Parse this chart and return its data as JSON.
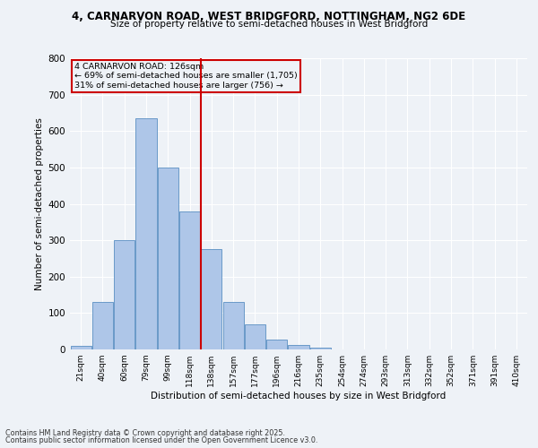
{
  "title1": "4, CARNARVON ROAD, WEST BRIDGFORD, NOTTINGHAM, NG2 6DE",
  "title2": "Size of property relative to semi-detached houses in West Bridgford",
  "xlabel": "Distribution of semi-detached houses by size in West Bridgford",
  "ylabel": "Number of semi-detached properties",
  "categories": [
    "21sqm",
    "40sqm",
    "60sqm",
    "79sqm",
    "99sqm",
    "118sqm",
    "138sqm",
    "157sqm",
    "177sqm",
    "196sqm",
    "216sqm",
    "235sqm",
    "254sqm",
    "274sqm",
    "293sqm",
    "313sqm",
    "332sqm",
    "352sqm",
    "371sqm",
    "391sqm",
    "410sqm"
  ],
  "values": [
    10,
    130,
    300,
    635,
    500,
    380,
    275,
    130,
    70,
    28,
    12,
    5,
    0,
    0,
    0,
    0,
    0,
    0,
    0,
    0,
    0
  ],
  "bar_color": "#aec6e8",
  "bar_edge_color": "#5a8fc2",
  "vline_x": 5.5,
  "vline_color": "#cc0000",
  "annotation_box_text": "4 CARNARVON ROAD: 126sqm\n← 69% of semi-detached houses are smaller (1,705)\n31% of semi-detached houses are larger (756) →",
  "annotation_box_color": "#cc0000",
  "ylim": [
    0,
    800
  ],
  "yticks": [
    0,
    100,
    200,
    300,
    400,
    500,
    600,
    700,
    800
  ],
  "footer_line1": "Contains HM Land Registry data © Crown copyright and database right 2025.",
  "footer_line2": "Contains public sector information licensed under the Open Government Licence v3.0.",
  "bg_color": "#eef2f7",
  "grid_color": "#ffffff"
}
